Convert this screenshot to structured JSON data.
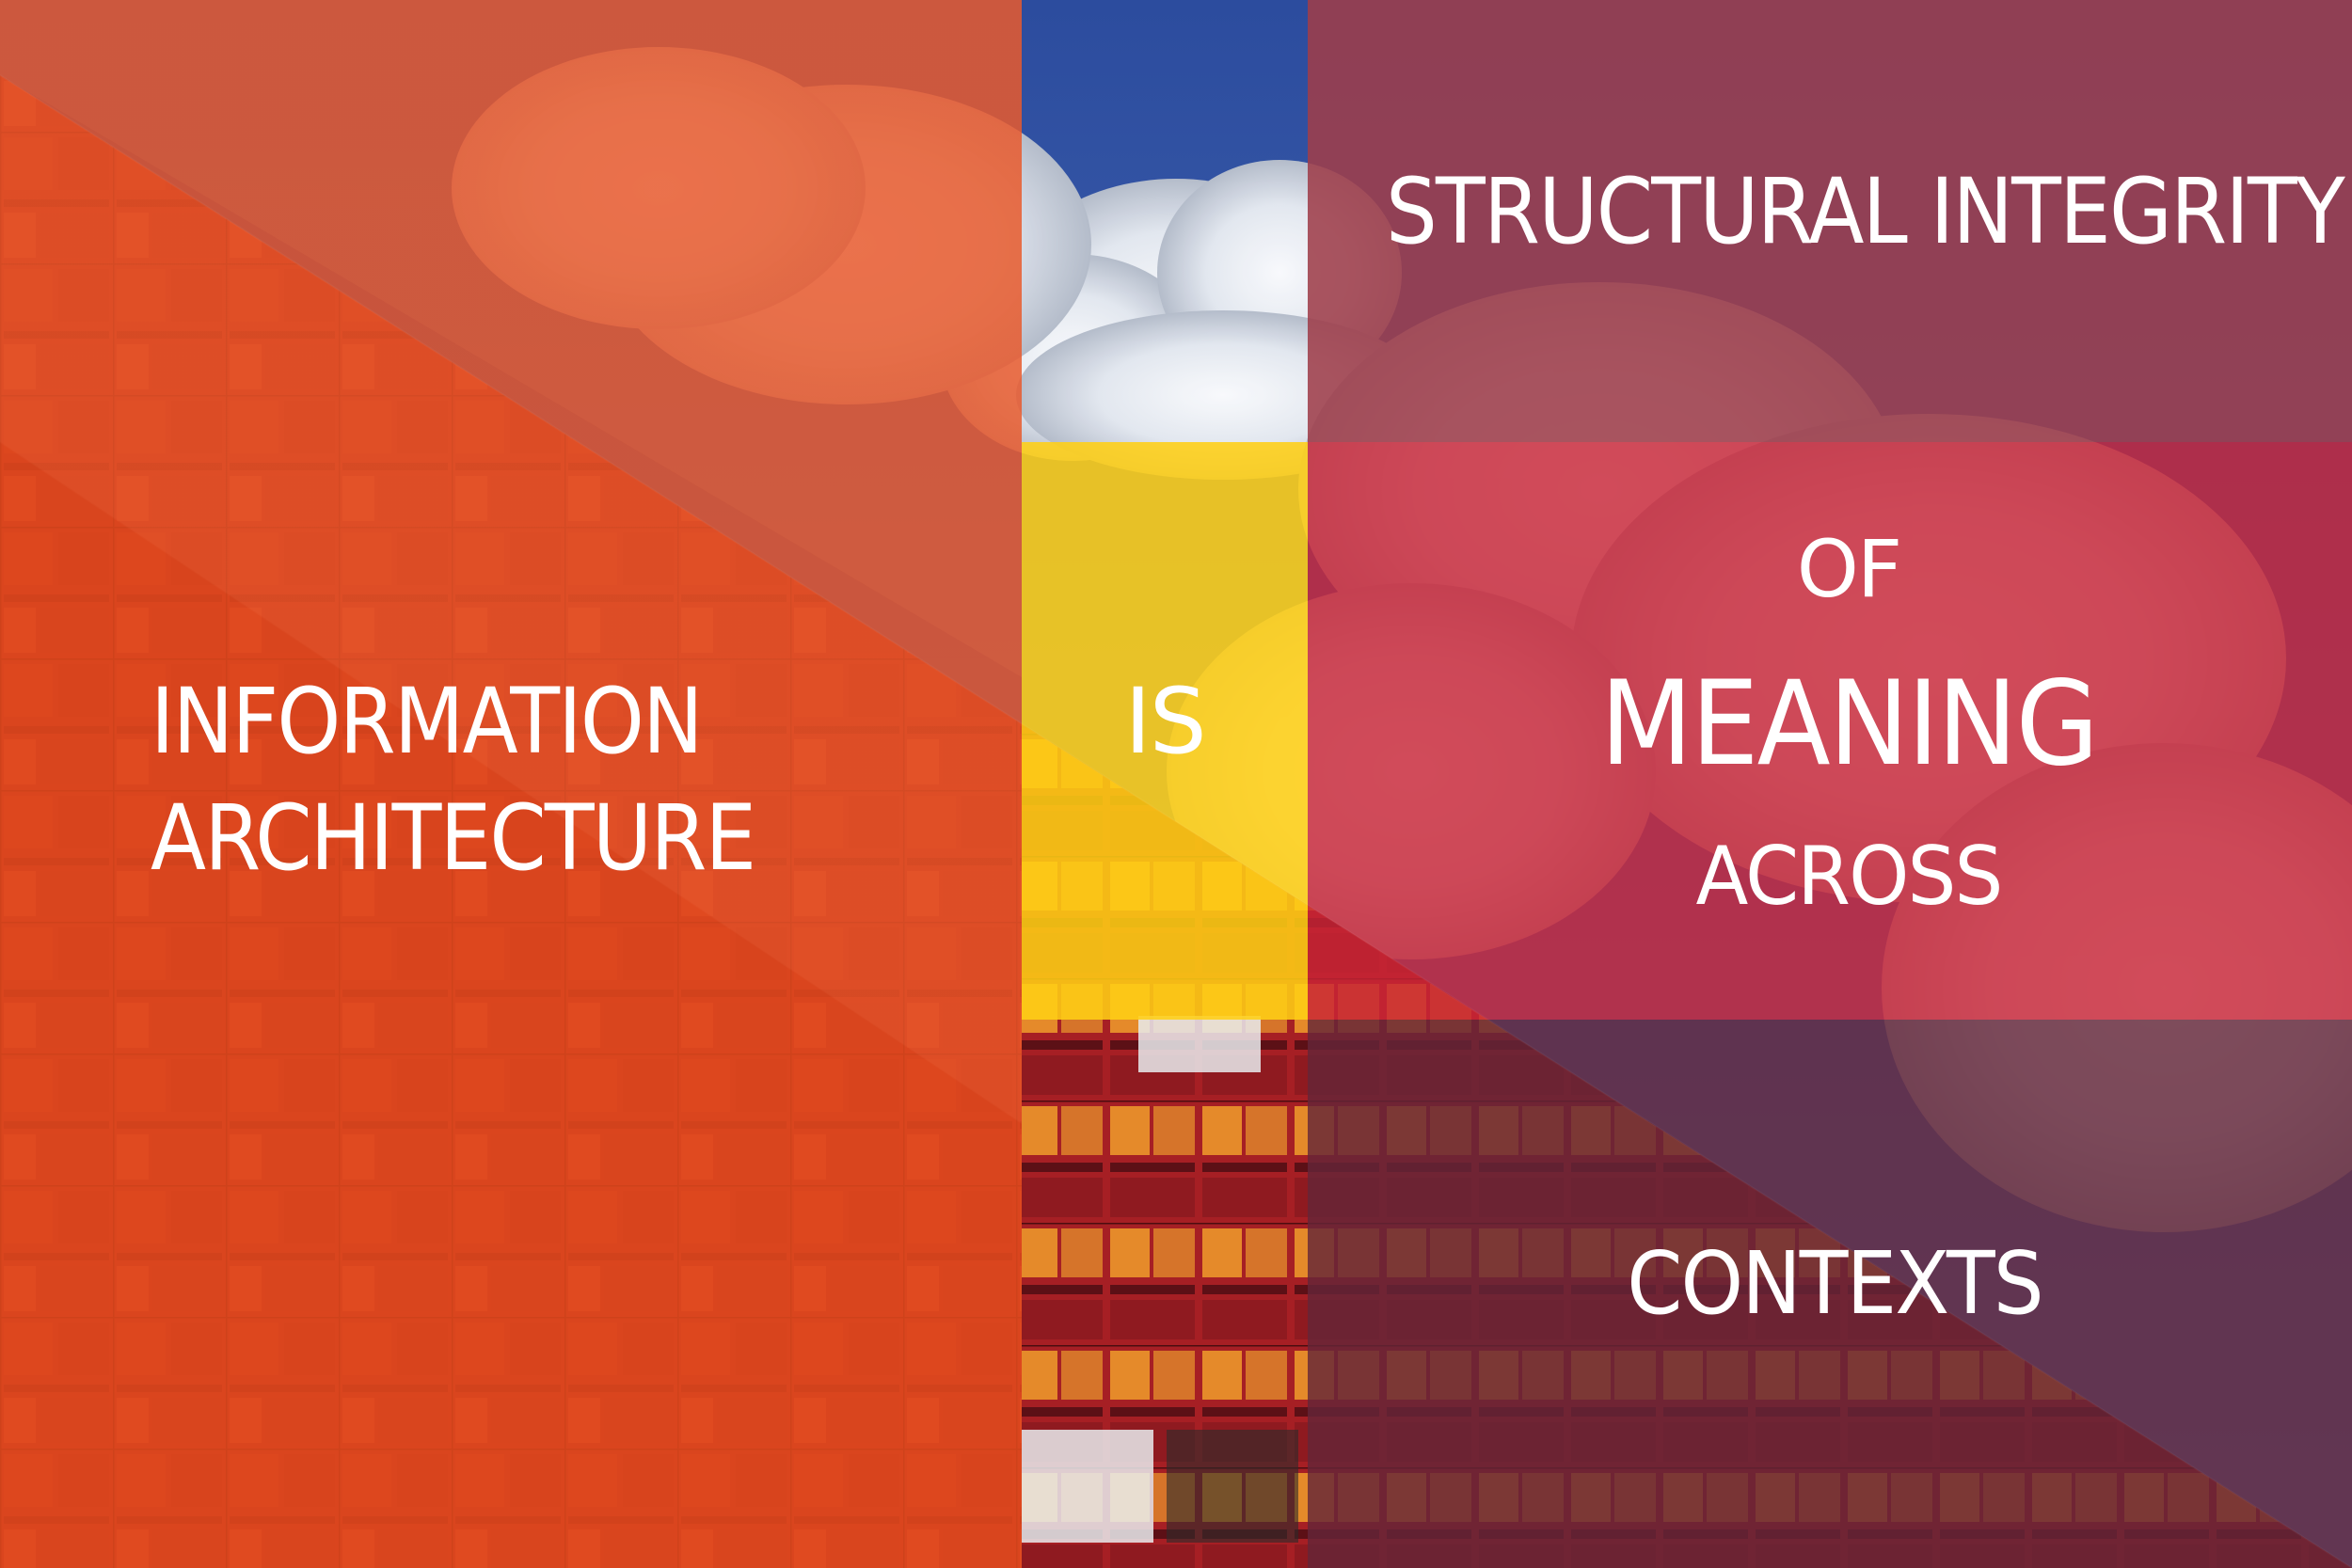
{
  "headline": {
    "part1_lines": [
      "INFORMATION",
      "ARCHITECTURE"
    ],
    "part2": "IS",
    "part3": "STRUCTURAL INTEGRITY",
    "part4": "OF",
    "part5": "MEANING",
    "part6": "ACROSS",
    "part7": "CONTEXTS"
  },
  "colors": {
    "left_panel": "#e24c1e",
    "yellow_panel": "#ffcf14",
    "sky": "#2f4f9c",
    "right_top_panel": "#9e3e4a",
    "right_mid_panel": "#c82436",
    "right_bottom_panel": "#642638",
    "text": "#ffffff"
  },
  "background": {
    "icon": "building-facade-with-clouds-photo"
  }
}
